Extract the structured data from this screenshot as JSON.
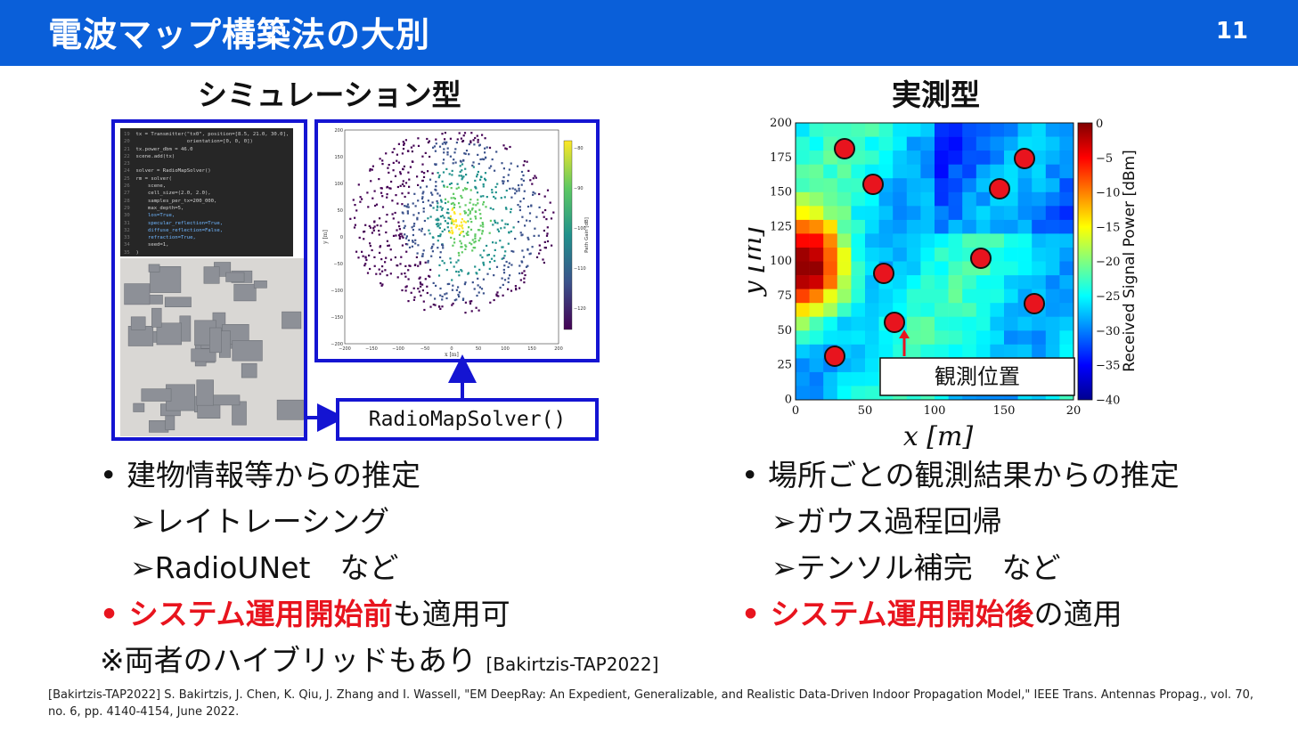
{
  "header": {
    "title": "電波マップ構築法の大別",
    "page_number": "11"
  },
  "left": {
    "heading": "シミュレーション型",
    "solver_label": "RadioMapSolver()",
    "code_lines": [
      {
        "n": "19",
        "t": "tx = Transmitter(\"tx0\", position=[8.5, 21.0, 30.0],"
      },
      {
        "n": "20",
        "t": "                 orientation=[0, 0, 0])"
      },
      {
        "n": "21",
        "t": "tx.power_dbm = 46.0"
      },
      {
        "n": "22",
        "t": "scene.add(tx)"
      },
      {
        "n": "23",
        "t": ""
      },
      {
        "n": "24",
        "t": "solver = RadioMapSolver()"
      },
      {
        "n": "25",
        "t": "rm = solver("
      },
      {
        "n": "26",
        "t": "    scene,"
      },
      {
        "n": "27",
        "t": "    cell_size=(2.0, 2.0),"
      },
      {
        "n": "28",
        "t": "    samples_per_tx=200_000,"
      },
      {
        "n": "29",
        "t": "    max_depth=5,"
      },
      {
        "n": "30",
        "t": "    los=True,"
      },
      {
        "n": "31",
        "t": "    specular_reflection=True,"
      },
      {
        "n": "32",
        "t": "    diffuse_reflection=False,"
      },
      {
        "n": "33",
        "t": "    refraction=True,"
      },
      {
        "n": "34",
        "t": "    seed=1,"
      },
      {
        "n": "35",
        "t": ")"
      }
    ],
    "sim_map": {
      "xlabel": "x [m]",
      "ylabel": "y [m]",
      "colorbar_label": "Path Gain [dB]",
      "x_ticks": [
        "−200",
        "−150",
        "−100",
        "−50",
        "0",
        "50",
        "100",
        "150",
        "200"
      ],
      "y_ticks": [
        "200",
        "150",
        "100",
        "50",
        "0",
        "−50",
        "−100",
        "−150",
        "−200"
      ],
      "colorbar_ticks": [
        "−80",
        "−90",
        "−100",
        "−110",
        "−120"
      ]
    },
    "bullets": {
      "b1": "• 建物情報等からの推定",
      "b1a": "➢レイトレーシング",
      "b1b": "➢RadioUNet　など",
      "b2_bullet": "• ",
      "b2_red": "システム運用開始前",
      "b2_rest": "も適用可",
      "b3": "※両者のハイブリッドもあり",
      "b3_ref": "[Bakirtzis-TAP2022]"
    }
  },
  "right": {
    "heading": "実測型",
    "map": {
      "xlabel": "x [m]",
      "ylabel": "y [m]",
      "colorbar_label": "Received Signal Power [dBm]",
      "x_ticks": [
        "0",
        "50",
        "100",
        "150",
        "20"
      ],
      "y_ticks": [
        "200",
        "175",
        "150",
        "125",
        "100",
        "75",
        "50",
        "25",
        "0"
      ],
      "colorbar_ticks": [
        "0",
        "−5",
        "−10",
        "−15",
        "−20",
        "−25",
        "−30",
        "−35",
        "−40"
      ],
      "annotation": "観測位置"
    },
    "bullets": {
      "b1": "• 場所ごとの観測結果からの推定",
      "b1a": "➢ガウス過程回帰",
      "b1b": "➢テンソル補完　など",
      "b2_bullet": "• ",
      "b2_red": "システム運用開始後",
      "b2_rest": "の適用"
    }
  },
  "footer": {
    "reference": "[Bakirtzis-TAP2022] S. Bakirtzis, J. Chen, K. Qiu, J. Zhang and I. Wassell, \"EM DeepRay: An Expedient, Generalizable, and Realistic Data-Driven Indoor Propagation Model,\" IEEE Trans. Antennas Propag., vol. 70, no. 6, pp. 4140-4154, June 2022."
  },
  "colors": {
    "header_bg": "#0a5fd9",
    "frame_blue": "#1414d2",
    "emphasis_red": "#e8141e"
  }
}
